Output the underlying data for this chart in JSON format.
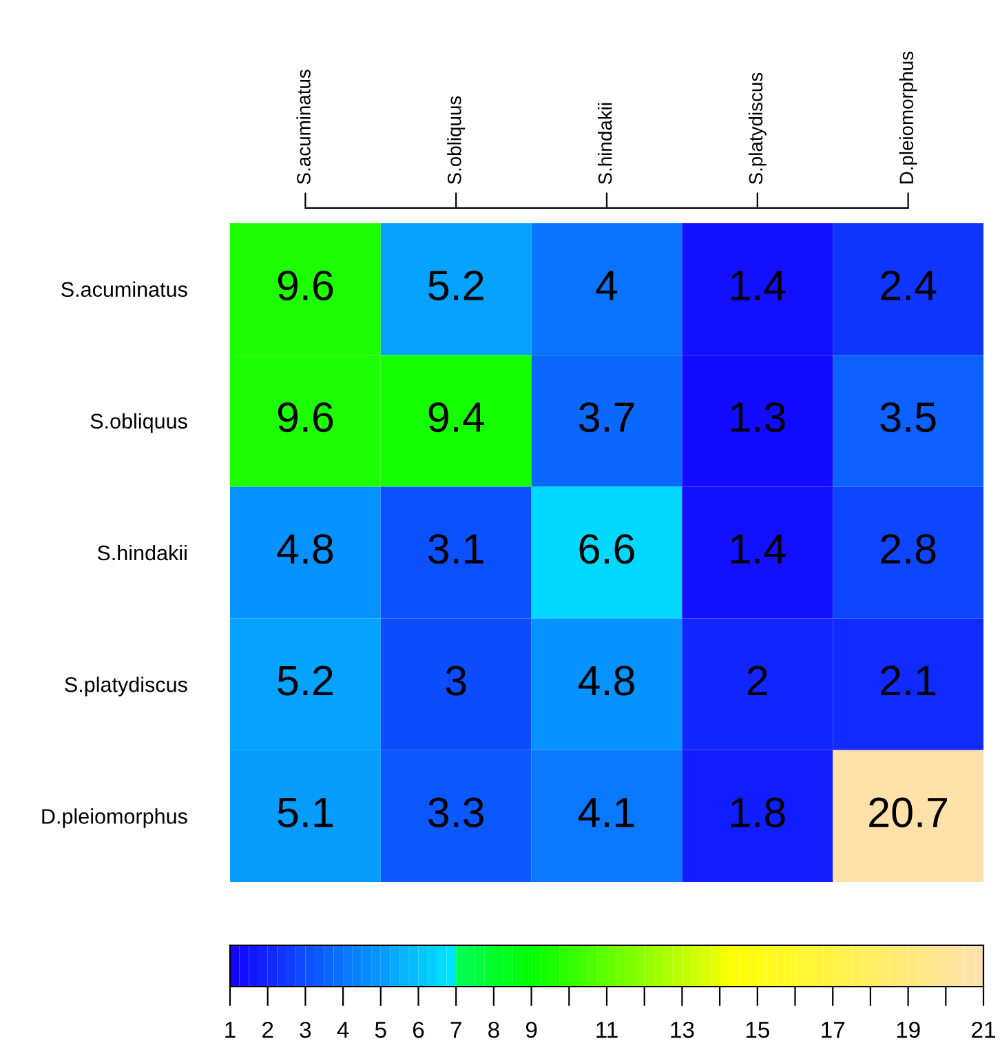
{
  "chart_data": {
    "type": "heatmap",
    "categories": [
      "S.acuminatus",
      "S.obliquus",
      "S.hindakii",
      "S.platydiscus",
      "D.pleiomorphus"
    ],
    "y_categories": [
      "S.acuminatus",
      "S.obliquus",
      "S.hindakii",
      "S.platydiscus",
      "D.pleiomorphus"
    ],
    "cells": [
      [
        9.6,
        5.2,
        4,
        1.4,
        2.4
      ],
      [
        9.6,
        9.4,
        3.7,
        1.3,
        3.5
      ],
      [
        4.8,
        3.1,
        6.6,
        1.4,
        2.8
      ],
      [
        5.2,
        3,
        4.8,
        2,
        2.1
      ],
      [
        5.1,
        3.3,
        4.1,
        1.8,
        20.7
      ]
    ],
    "data_labels": true,
    "clim": [
      1,
      21
    ],
    "cticks": [
      1,
      2,
      3,
      4,
      5,
      6,
      7,
      8,
      9,
      {
        "value": 10,
        "label": null
      },
      11,
      {
        "value": 12,
        "label": null
      },
      13,
      {
        "value": 14,
        "label": null
      },
      15,
      {
        "value": 16,
        "label": null
      },
      17,
      {
        "value": 18,
        "label": null
      },
      19,
      {
        "value": 20,
        "label": null
      },
      21
    ]
  }
}
